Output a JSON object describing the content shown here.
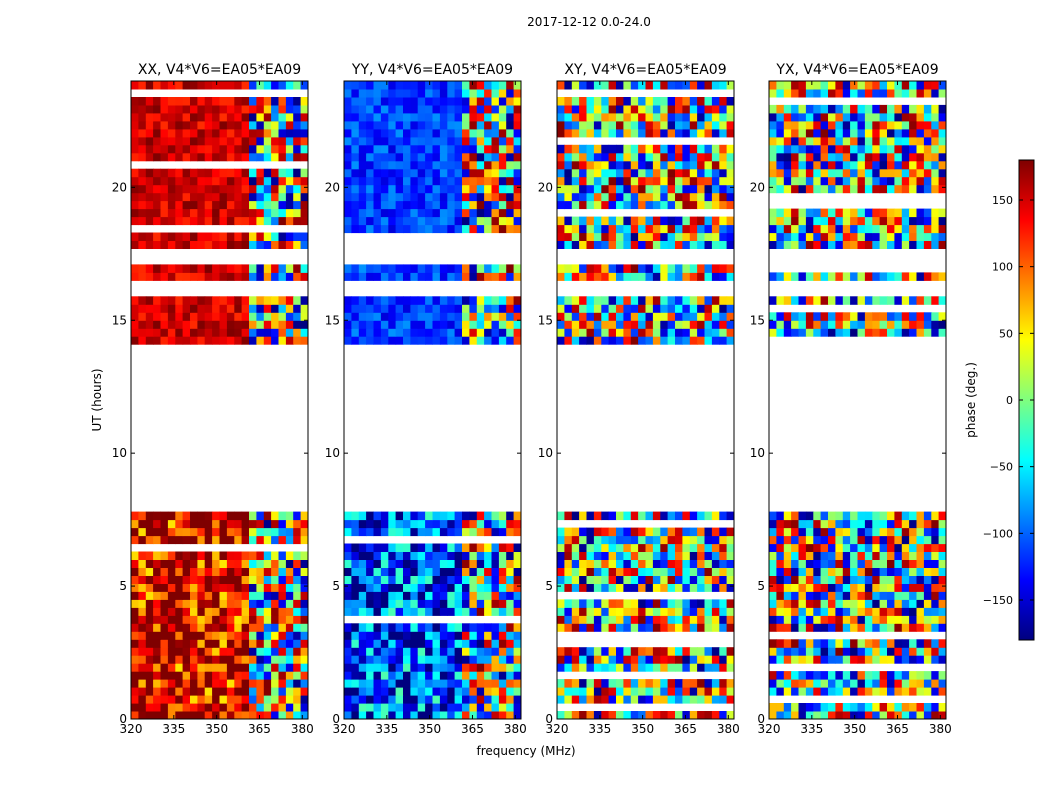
{
  "figure": {
    "suptitle": "2017-12-12 0.0-24.0"
  },
  "colorbar": {
    "label": "phase (deg.)",
    "range": [
      -180,
      180
    ],
    "ticks": [
      150,
      100,
      50,
      0,
      -50,
      -100,
      -150
    ],
    "tick_labels": [
      "150",
      "100",
      "50",
      "0",
      "−50",
      "−100",
      "−150"
    ],
    "colormap": "jet",
    "stops": [
      "#00007f",
      "#0000ff",
      "#007fff",
      "#00ffff",
      "#7fff7f",
      "#ffff00",
      "#ff7f00",
      "#ff0000",
      "#7f0000"
    ]
  },
  "chart_data": [
    {
      "type": "heatmap",
      "title": "XX, V4*V6=EA05*EA09",
      "xlabel": "",
      "ylabel": "UT (hours)",
      "xlim": [
        320,
        382
      ],
      "ylim": [
        0,
        24
      ],
      "xticks": [
        320,
        335,
        350,
        365,
        380
      ],
      "yticks": [
        0,
        5,
        10,
        15,
        20
      ],
      "value": "phase (deg.)",
      "gaps_hours": [
        [
          7.7,
          14.0
        ],
        [
          15.8,
          16.5
        ],
        [
          17.1,
          17.8
        ]
      ],
      "notes": "mostly red (~+150 deg) at lower frequencies, striped fringes above ~360 MHz"
    },
    {
      "type": "heatmap",
      "title": "YY, V4*V6=EA05*EA09",
      "xlabel": "frequency (MHz)",
      "ylabel": "",
      "xlim": [
        320,
        382
      ],
      "ylim": [
        0,
        24
      ],
      "xticks": [
        320,
        335,
        350,
        365,
        380
      ],
      "yticks": [
        0,
        5,
        10,
        15,
        20
      ],
      "value": "phase (deg.)",
      "gaps_hours": [
        [
          7.7,
          14.0
        ],
        [
          15.8,
          16.5
        ],
        [
          17.1,
          17.8
        ]
      ],
      "notes": "mostly blue (~-120 deg) at lower frequencies, striped fringes above ~360 MHz"
    },
    {
      "type": "heatmap",
      "title": "XY, V4*V6=EA05*EA09",
      "xlabel": "",
      "ylabel": "",
      "xlim": [
        320,
        382
      ],
      "ylim": [
        0,
        24
      ],
      "xticks": [
        320,
        335,
        350,
        365,
        380
      ],
      "yticks": [
        0,
        5,
        10,
        15,
        20
      ],
      "value": "phase (deg.)",
      "gaps_hours": [
        [
          7.7,
          14.0
        ],
        [
          15.8,
          16.5
        ],
        [
          17.1,
          17.8
        ]
      ],
      "notes": "noise-like phases across all frequencies"
    },
    {
      "type": "heatmap",
      "title": "YX, V4*V6=EA05*EA09",
      "xlabel": "",
      "ylabel": "",
      "xlim": [
        320,
        382
      ],
      "ylim": [
        0,
        24
      ],
      "xticks": [
        320,
        335,
        350,
        365,
        380
      ],
      "yticks": [
        0,
        5,
        10,
        15,
        20
      ],
      "value": "phase (deg.)",
      "gaps_hours": [
        [
          7.7,
          14.0
        ],
        [
          15.8,
          16.5
        ],
        [
          17.1,
          17.8
        ]
      ],
      "notes": "noise-like phases across all frequencies"
    }
  ]
}
